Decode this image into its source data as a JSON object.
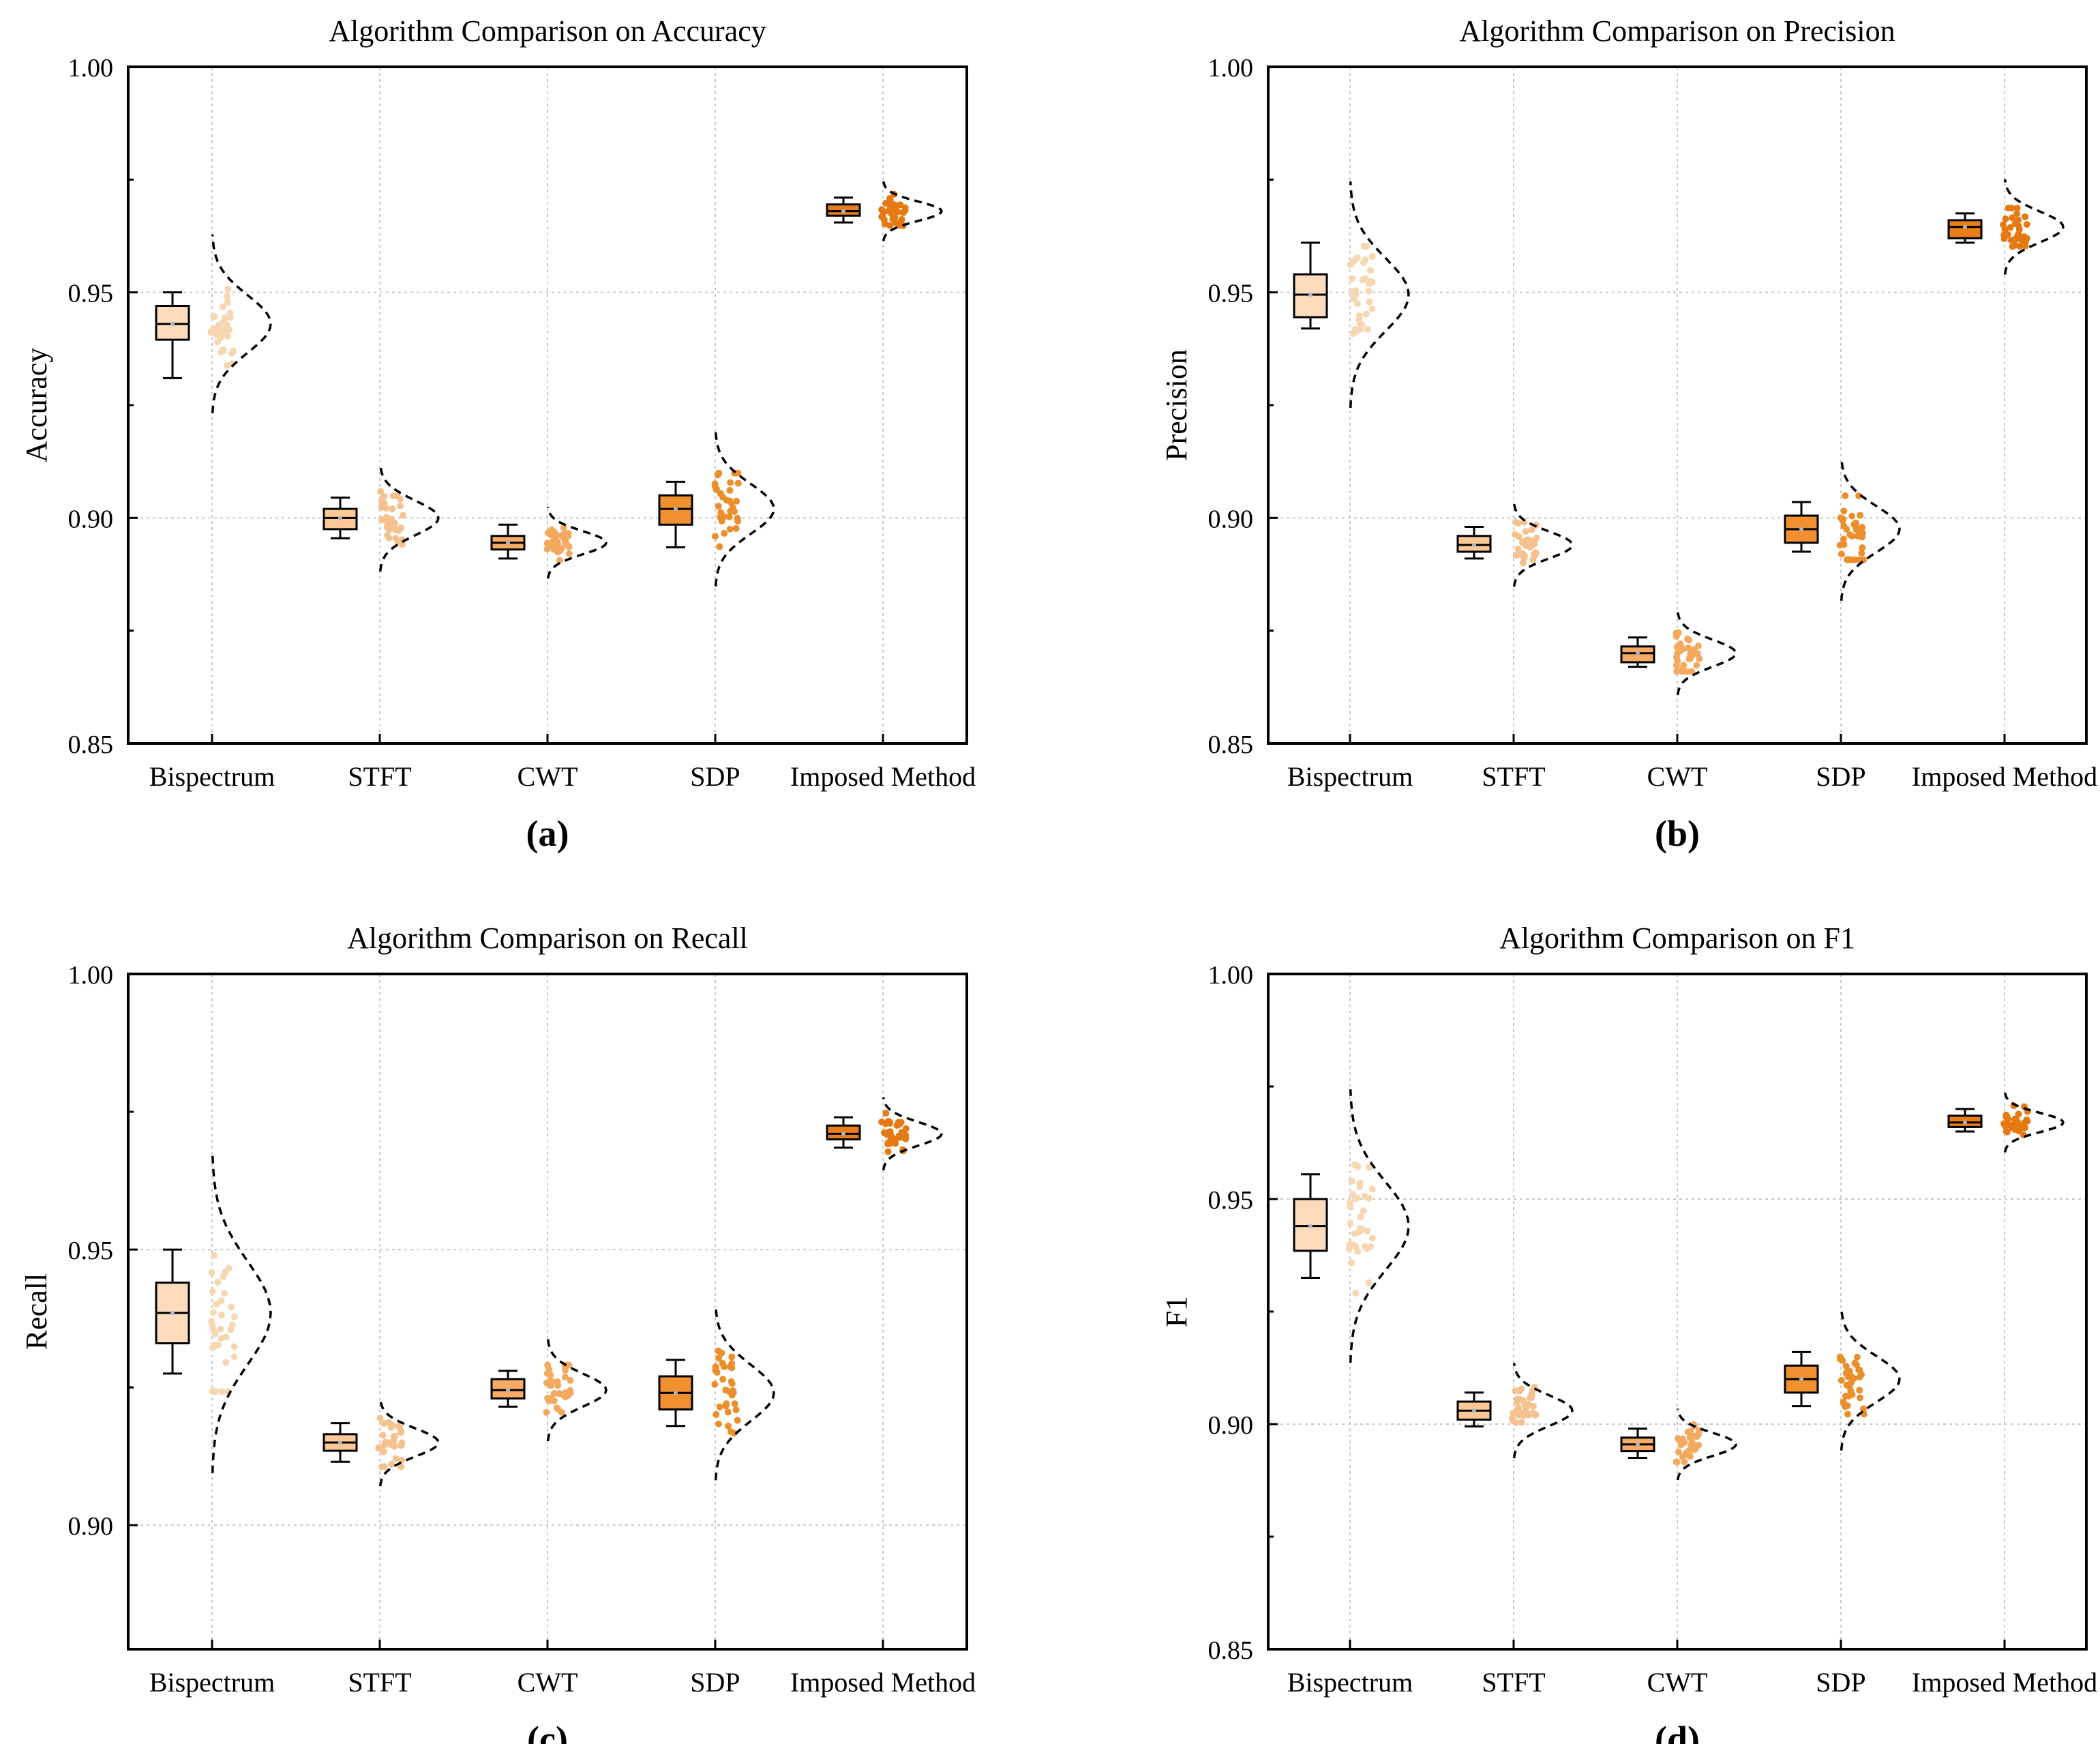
{
  "chart_data": [
    {
      "type": "box",
      "panel_label": "(a)",
      "title": "Algorithm Comparison on Accuracy",
      "ylabel": "Accuracy",
      "xlabel": "",
      "ylim": [
        0.85,
        1.0
      ],
      "yticks": [
        "0.85",
        "0.90",
        "0.95",
        "1.00"
      ],
      "grid": true,
      "categories": [
        "Bispectrum",
        "STFT",
        "CWT",
        "SDP",
        "Imposed Method"
      ],
      "boxes": [
        {
          "min": 0.931,
          "q1": 0.9395,
          "median": 0.943,
          "q3": 0.947,
          "max": 0.95,
          "mean": 0.943
        },
        {
          "min": 0.8955,
          "q1": 0.8975,
          "median": 0.9,
          "q3": 0.902,
          "max": 0.9045,
          "mean": 0.9
        },
        {
          "min": 0.891,
          "q1": 0.893,
          "median": 0.8945,
          "q3": 0.896,
          "max": 0.8985,
          "mean": 0.8945
        },
        {
          "min": 0.8935,
          "q1": 0.8985,
          "median": 0.902,
          "q3": 0.905,
          "max": 0.908,
          "mean": 0.902
        },
        {
          "min": 0.9655,
          "q1": 0.967,
          "median": 0.968,
          "q3": 0.9695,
          "max": 0.971,
          "mean": 0.968
        }
      ]
    },
    {
      "type": "box",
      "panel_label": "(b)",
      "title": "Algorithm Comparison on Precision",
      "ylabel": "Precision",
      "xlabel": "",
      "ylim": [
        0.85,
        1.0
      ],
      "yticks": [
        "0.85",
        "0.90",
        "0.95",
        "1.00"
      ],
      "grid": true,
      "categories": [
        "Bispectrum",
        "STFT",
        "CWT",
        "SDP",
        "Imposed Method"
      ],
      "boxes": [
        {
          "min": 0.942,
          "q1": 0.9445,
          "median": 0.9495,
          "q3": 0.954,
          "max": 0.961,
          "mean": 0.9495
        },
        {
          "min": 0.891,
          "q1": 0.8925,
          "median": 0.894,
          "q3": 0.896,
          "max": 0.898,
          "mean": 0.894
        },
        {
          "min": 0.867,
          "q1": 0.868,
          "median": 0.87,
          "q3": 0.8715,
          "max": 0.8735,
          "mean": 0.87
        },
        {
          "min": 0.8925,
          "q1": 0.8945,
          "median": 0.8975,
          "q3": 0.9005,
          "max": 0.9035,
          "mean": 0.8975
        },
        {
          "min": 0.961,
          "q1": 0.962,
          "median": 0.9645,
          "q3": 0.966,
          "max": 0.9675,
          "mean": 0.9645
        }
      ]
    },
    {
      "type": "box",
      "panel_label": "(c)",
      "title": "Algorithm Comparison on Recall",
      "ylabel": "Recall",
      "xlabel": "",
      "ylim": [
        0.8775,
        1.0
      ],
      "yticks": [
        "0.90",
        "0.95",
        "1.00"
      ],
      "grid": true,
      "categories": [
        "Bispectrum",
        "STFT",
        "CWT",
        "SDP",
        "Imposed Method"
      ],
      "boxes": [
        {
          "min": 0.9275,
          "q1": 0.933,
          "median": 0.9385,
          "q3": 0.944,
          "max": 0.95,
          "mean": 0.9385
        },
        {
          "min": 0.9115,
          "q1": 0.9135,
          "median": 0.915,
          "q3": 0.9165,
          "max": 0.9185,
          "mean": 0.915
        },
        {
          "min": 0.9215,
          "q1": 0.923,
          "median": 0.9245,
          "q3": 0.9265,
          "max": 0.928,
          "mean": 0.9245
        },
        {
          "min": 0.918,
          "q1": 0.921,
          "median": 0.924,
          "q3": 0.927,
          "max": 0.93,
          "mean": 0.924
        },
        {
          "min": 0.9685,
          "q1": 0.97,
          "median": 0.971,
          "q3": 0.9725,
          "max": 0.974,
          "mean": 0.971
        }
      ]
    },
    {
      "type": "box",
      "panel_label": "(d)",
      "title": "Algorithm Comparison on F1",
      "ylabel": "F1",
      "xlabel": "",
      "ylim": [
        0.85,
        1.0
      ],
      "yticks": [
        "0.85",
        "0.90",
        "0.95",
        "1.00"
      ],
      "grid": true,
      "categories": [
        "Bispectrum",
        "STFT",
        "CWT",
        "SDP",
        "Imposed Method"
      ],
      "boxes": [
        {
          "min": 0.9325,
          "q1": 0.9385,
          "median": 0.944,
          "q3": 0.95,
          "max": 0.9555,
          "mean": 0.944
        },
        {
          "min": 0.8995,
          "q1": 0.901,
          "median": 0.903,
          "q3": 0.905,
          "max": 0.907,
          "mean": 0.903
        },
        {
          "min": 0.8925,
          "q1": 0.894,
          "median": 0.8955,
          "q3": 0.897,
          "max": 0.899,
          "mean": 0.8955
        },
        {
          "min": 0.904,
          "q1": 0.907,
          "median": 0.91,
          "q3": 0.913,
          "max": 0.916,
          "mean": 0.91
        },
        {
          "min": 0.965,
          "q1": 0.966,
          "median": 0.967,
          "q3": 0.9685,
          "max": 0.97,
          "mean": 0.967
        }
      ]
    }
  ],
  "colors": {
    "box_fill": [
      "#fcdcbc",
      "#fbc896",
      "#f8ab66",
      "#f0902e",
      "#e87e1a"
    ],
    "scatter": [
      "#f7d6b2",
      "#f5c18e",
      "#f3a95e",
      "#eb8f2c",
      "#e57a12"
    ],
    "mean_marker": "#a9b7c8",
    "grid": "#c8c8c8",
    "axis": "#000000"
  }
}
